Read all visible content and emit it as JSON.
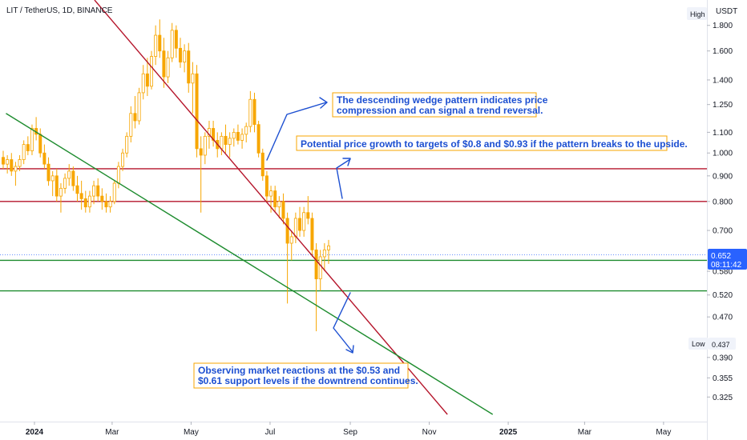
{
  "header": {
    "symbol": "LIT / TetherUS, 1D, BINANCE"
  },
  "axis": {
    "currency": "USDT",
    "high_label": "High",
    "low_label": "Low",
    "low_value": "0.437"
  },
  "current": {
    "price": "0.652",
    "countdown": "08:11:42"
  },
  "annotations": [
    {
      "lines": [
        "The descending wedge pattern indicates price",
        "compression and can signal a trend reversal."
      ]
    },
    {
      "lines": [
        "Potential price growth to targets of $0.8 and $0.93 if the pattern breaks to the upside."
      ]
    },
    {
      "lines": [
        "Observing market reactions at the $0.53 and",
        "$0.61 support levels if the downtrend continues."
      ]
    }
  ],
  "colors": {
    "up": "#f7a600",
    "down": "#f7a600",
    "resistance": "#b5152b",
    "support": "#1e8c2f",
    "price_tag": "#2962ff",
    "annotation_text": "#1c4fd1",
    "annotation_border": "#f7a600",
    "arrow": "#1c4fd1"
  },
  "chart_data": {
    "type": "candlestick",
    "interval": "1D",
    "x_ticks": [
      "2024",
      "Mar",
      "May",
      "Jul",
      "Sep",
      "Nov",
      "2025",
      "Mar",
      "May"
    ],
    "y_ticks": [
      "1.800",
      "1.600",
      "1.400",
      "1.250",
      "1.100",
      "1.000",
      "0.900",
      "0.800",
      "0.700",
      "0.580",
      "0.520",
      "0.470",
      "0.390",
      "0.355",
      "0.325"
    ],
    "y_scale": "log",
    "horizontal_levels": [
      {
        "price": 0.93,
        "role": "resistance"
      },
      {
        "price": 0.8,
        "role": "resistance"
      },
      {
        "price": 0.61,
        "role": "support"
      },
      {
        "price": 0.53,
        "role": "support"
      }
    ],
    "trendlines": [
      {
        "role": "resistance",
        "from": {
          "date": "2024-01-01",
          "price": 2.8
        },
        "to": {
          "date": "2024-11-15",
          "price": 0.3
        }
      },
      {
        "role": "support",
        "from": {
          "date": "2023-12-10",
          "price": 1.2
        },
        "to": {
          "date": "2024-12-20",
          "price": 0.3
        }
      }
    ],
    "price_range": {
      "high": 1.85,
      "low": 0.437,
      "last": 0.652
    },
    "candles": [
      [
        0.98,
        1.01,
        0.93,
        0.95
      ],
      [
        0.95,
        0.99,
        0.91,
        0.97
      ],
      [
        0.97,
        1.0,
        0.9,
        0.92
      ],
      [
        0.92,
        0.96,
        0.86,
        0.94
      ],
      [
        0.94,
        0.99,
        0.92,
        0.97
      ],
      [
        0.97,
        1.06,
        0.95,
        1.04
      ],
      [
        1.04,
        1.08,
        0.99,
        1.01
      ],
      [
        1.01,
        1.14,
        0.99,
        1.12
      ],
      [
        1.12,
        1.18,
        1.06,
        1.09
      ],
      [
        1.09,
        1.12,
        0.98,
        1.0
      ],
      [
        1.0,
        1.04,
        0.93,
        0.95
      ],
      [
        0.95,
        0.98,
        0.86,
        0.88
      ],
      [
        0.88,
        0.92,
        0.82,
        0.9
      ],
      [
        0.9,
        0.93,
        0.8,
        0.82
      ],
      [
        0.82,
        0.87,
        0.76,
        0.85
      ],
      [
        0.85,
        0.91,
        0.83,
        0.89
      ],
      [
        0.89,
        0.95,
        0.86,
        0.92
      ],
      [
        0.92,
        0.94,
        0.84,
        0.86
      ],
      [
        0.86,
        0.9,
        0.8,
        0.83
      ],
      [
        0.83,
        0.88,
        0.77,
        0.81
      ],
      [
        0.81,
        0.84,
        0.76,
        0.78
      ],
      [
        0.78,
        0.84,
        0.76,
        0.82
      ],
      [
        0.82,
        0.88,
        0.79,
        0.86
      ],
      [
        0.86,
        0.89,
        0.8,
        0.82
      ],
      [
        0.82,
        0.85,
        0.77,
        0.8
      ],
      [
        0.8,
        0.83,
        0.76,
        0.78
      ],
      [
        0.78,
        0.82,
        0.76,
        0.8
      ],
      [
        0.8,
        0.88,
        0.79,
        0.87
      ],
      [
        0.87,
        0.96,
        0.85,
        0.94
      ],
      [
        0.94,
        1.02,
        0.92,
        1.0
      ],
      [
        1.0,
        1.1,
        0.98,
        1.08
      ],
      [
        1.08,
        1.24,
        1.05,
        1.2
      ],
      [
        1.2,
        1.3,
        1.12,
        1.16
      ],
      [
        1.16,
        1.35,
        1.14,
        1.32
      ],
      [
        1.32,
        1.5,
        1.28,
        1.44
      ],
      [
        1.44,
        1.55,
        1.3,
        1.36
      ],
      [
        1.36,
        1.6,
        1.34,
        1.56
      ],
      [
        1.56,
        1.8,
        1.5,
        1.72
      ],
      [
        1.72,
        1.85,
        1.55,
        1.6
      ],
      [
        1.6,
        1.7,
        1.35,
        1.42
      ],
      [
        1.42,
        1.6,
        1.38,
        1.55
      ],
      [
        1.55,
        1.82,
        1.52,
        1.76
      ],
      [
        1.76,
        1.8,
        1.55,
        1.62
      ],
      [
        1.62,
        1.7,
        1.48,
        1.52
      ],
      [
        1.52,
        1.65,
        1.45,
        1.6
      ],
      [
        1.6,
        1.66,
        1.32,
        1.38
      ],
      [
        1.38,
        1.52,
        1.2,
        1.44
      ],
      [
        1.44,
        1.5,
        0.98,
        1.02
      ],
      [
        1.02,
        1.08,
        0.76,
        0.99
      ],
      [
        0.99,
        1.1,
        0.95,
        1.08
      ],
      [
        1.08,
        1.16,
        1.02,
        1.12
      ],
      [
        1.12,
        1.16,
        1.03,
        1.06
      ],
      [
        1.06,
        1.1,
        0.98,
        1.02
      ],
      [
        1.02,
        1.1,
        0.99,
        1.08
      ],
      [
        1.08,
        1.14,
        1.0,
        1.04
      ],
      [
        1.04,
        1.1,
        0.98,
        1.07
      ],
      [
        1.07,
        1.12,
        1.03,
        1.1
      ],
      [
        1.1,
        1.14,
        1.04,
        1.06
      ],
      [
        1.06,
        1.12,
        1.02,
        1.09
      ],
      [
        1.09,
        1.15,
        1.05,
        1.13
      ],
      [
        1.13,
        1.33,
        1.1,
        1.28
      ],
      [
        1.28,
        1.32,
        1.1,
        1.14
      ],
      [
        1.14,
        1.16,
        0.98,
        1.0
      ],
      [
        1.0,
        1.02,
        0.88,
        0.9
      ],
      [
        0.9,
        0.92,
        0.8,
        0.82
      ],
      [
        0.82,
        0.86,
        0.76,
        0.84
      ],
      [
        0.84,
        0.86,
        0.76,
        0.78
      ],
      [
        0.78,
        0.82,
        0.74,
        0.8
      ],
      [
        0.8,
        0.83,
        0.72,
        0.74
      ],
      [
        0.74,
        0.76,
        0.5,
        0.66
      ],
      [
        0.66,
        0.7,
        0.61,
        0.68
      ],
      [
        0.68,
        0.76,
        0.66,
        0.74
      ],
      [
        0.74,
        0.78,
        0.68,
        0.7
      ],
      [
        0.7,
        0.78,
        0.68,
        0.76
      ],
      [
        0.76,
        0.82,
        0.72,
        0.74
      ],
      [
        0.74,
        0.76,
        0.62,
        0.64
      ],
      [
        0.64,
        0.66,
        0.44,
        0.56
      ],
      [
        0.56,
        0.64,
        0.53,
        0.62
      ],
      [
        0.62,
        0.66,
        0.58,
        0.64
      ],
      [
        0.64,
        0.67,
        0.6,
        0.652
      ]
    ]
  }
}
